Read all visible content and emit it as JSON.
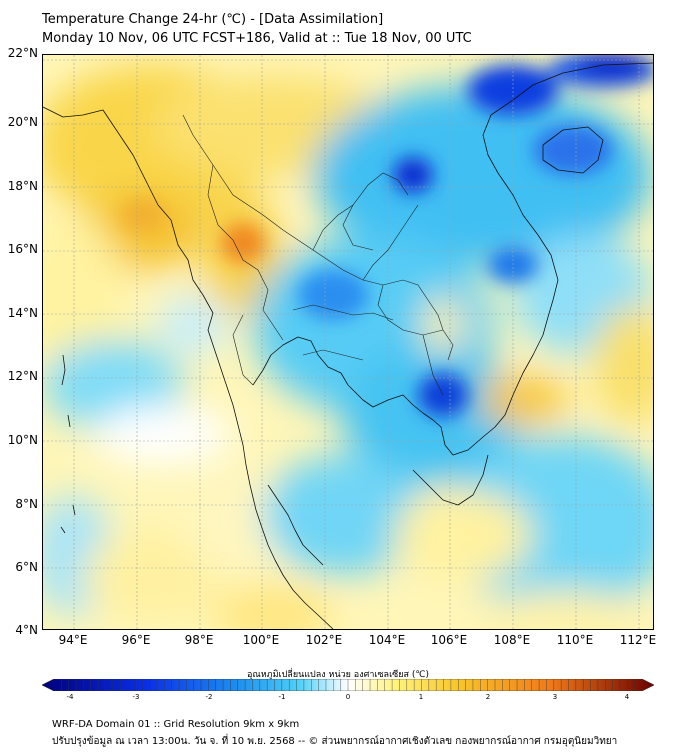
{
  "title": {
    "line1": "Temperature Change 24-hr (℃) - [Data Assimilation]",
    "line2": "Monday 10 Nov, 06 UTC FCST+186, Valid at :: Tue 18 Nov, 00 UTC"
  },
  "map": {
    "lat_labels": [
      "22°N",
      "20°N",
      "18°N",
      "16°N",
      "14°N",
      "12°N",
      "10°N",
      "8°N",
      "6°N",
      "4°N"
    ],
    "lon_labels": [
      "94°E",
      "96°E",
      "98°E",
      "100°E",
      "102°E",
      "104°E",
      "106°E",
      "108°E",
      "110°E",
      "112°E"
    ],
    "lat_range": [
      4,
      22
    ],
    "lon_range": [
      93,
      112.5
    ]
  },
  "colorbar": {
    "title": "อุณหภูมิเปลี่ยนแปลง หน่วย องศาเซลเซียส (℃)",
    "ticks": [
      "-4",
      "-3",
      "-2",
      "-1",
      "0",
      "1",
      "2",
      "3",
      "4"
    ],
    "range": [
      -4,
      4
    ],
    "colors": {
      "cold_extreme": "#00007a",
      "cold": "#0a2ee8",
      "cool": "#1e8ff0",
      "cool_light": "#4fd0f7",
      "neutral": "#ffffff",
      "warm_light": "#fff27a",
      "warm": "#f7c52b",
      "hot": "#f07a1a",
      "hot_extreme": "#6a0000"
    }
  },
  "footer": {
    "line1": "WRF-DA Domain 01 :: Grid Resolution 9km x 9km",
    "line2": "ปรับปรุงข้อมูล ณ เวลา 13:00น. วัน จ. ที่ 10 พ.ย. 2568 -- © ส่วนพยากรณ์อากาศเชิงตัวเลข กองพยากรณ์อากาศ กรมอุตุนิยมวิทยา"
  }
}
